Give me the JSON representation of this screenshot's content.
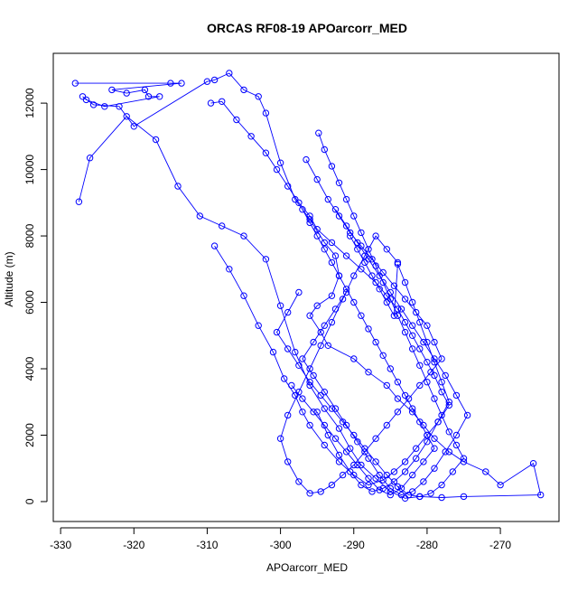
{
  "chart_data": {
    "type": "scatter",
    "title": "ORCAS RF08-19 APOarcorr_MED",
    "xlabel": "APOarcorr_MED",
    "ylabel": "Altitude (m)",
    "xlim": [
      -331,
      -262
    ],
    "ylim": [
      -600,
      13500
    ],
    "xticks": [
      -330,
      -320,
      -310,
      -300,
      -290,
      -280,
      -270
    ],
    "yticks": [
      0,
      2000,
      4000,
      6000,
      8000,
      10000,
      12000
    ],
    "connected": true,
    "grid": false,
    "colors": {
      "series": "#0000ff",
      "axis": "#000000",
      "background": "#ffffff"
    },
    "series": [
      {
        "x": [
          -328.0,
          -315.0,
          -313.5,
          -323.0,
          -321.0,
          -318.5,
          -318.0,
          -316.5,
          -324.0,
          -326.5,
          -327.0,
          -325.5,
          -322.0,
          -320.0,
          -310.0,
          -309.0,
          -307.0,
          -305.0,
          -303.0,
          -302.0,
          -300.0,
          -298.0,
          -296.0,
          -294.0,
          -292.5,
          -292.0,
          -293.0,
          -295.0,
          -296.0,
          -294.5,
          -293.5,
          -290.0,
          -288.0,
          -285.5,
          -284.0,
          -282.0,
          -280.5,
          -279.0,
          -277.0,
          -275.0,
          -272.0,
          -270.0,
          -265.5,
          -264.5,
          -275.0,
          -278.0,
          -281.0,
          -283.0,
          -285.0,
          -287.0,
          -289.0,
          -290.5,
          -292.0,
          -294.0,
          -296.0,
          -298.0,
          -300.0,
          -302.0,
          -305.0,
          -308.0,
          -311.0,
          -314.0,
          -317.0,
          -321.0,
          -326.0,
          -327.5
        ],
        "y": [
          12600,
          12600,
          12600,
          12400,
          12300,
          12400,
          12200,
          12200,
          11900,
          12100,
          12200,
          11950,
          11900,
          11300,
          12650,
          12700,
          12900,
          12400,
          12200,
          11700,
          10200,
          9100,
          8500,
          7800,
          7400,
          6800,
          6200,
          5900,
          5600,
          5100,
          4700,
          4300,
          3900,
          3500,
          3100,
          2700,
          2300,
          1900,
          1500,
          1200,
          900,
          500,
          1150,
          200,
          150,
          120,
          150,
          100,
          300,
          700,
          1100,
          1600,
          2200,
          2800,
          3500,
          4500,
          5900,
          7300,
          8000,
          8300,
          8600,
          9500,
          10900,
          11600,
          10350,
          9030
        ]
      },
      {
        "x": [
          -309.5,
          -308.0,
          -306.0,
          -304.0,
          -302.0,
          -300.5,
          -299.0,
          -297.5,
          -296.0,
          -295.0,
          -293.0,
          -291.0,
          -289.0,
          -287.0,
          -285.5,
          -284.0,
          -283.0,
          -282.0,
          -281.0,
          -280.0,
          -279.0,
          -278.0,
          -277.0,
          -278.5,
          -280.0,
          -281.5,
          -283.0,
          -284.5,
          -286.0,
          -288.0,
          -290.0,
          -292.0,
          -294.0,
          -296.0,
          -297.0,
          -298.0,
          -299.5,
          -301.0,
          -303.0,
          -305.0,
          -307.0,
          -309.0
        ],
        "y": [
          12000,
          12050,
          11500,
          11000,
          10500,
          10000,
          9500,
          9000,
          8600,
          8200,
          7800,
          7400,
          7000,
          6600,
          6200,
          5800,
          5400,
          5000,
          4600,
          4200,
          3800,
          3300,
          2900,
          2400,
          2000,
          1600,
          1200,
          900,
          650,
          500,
          800,
          1200,
          1700,
          2300,
          2700,
          3200,
          3700,
          4500,
          5300,
          6200,
          7000,
          7700
        ]
      },
      {
        "x": [
          -296.5,
          -295.0,
          -293.5,
          -292.0,
          -290.5,
          -289.0,
          -287.5,
          -286.0,
          -284.5,
          -283.0,
          -281.5,
          -280.0,
          -279.0,
          -278.0,
          -279.5,
          -281.0,
          -282.5,
          -284.0,
          -285.5,
          -287.0,
          -288.5,
          -290.0,
          -291.5,
          -293.0,
          -294.5,
          -296.0,
          -297.5,
          -299.0,
          -300.0,
          -299.0,
          -297.5,
          -296.0,
          -294.5,
          -293.0,
          -291.5,
          -290.0,
          -288.5,
          -287.0,
          -285.5,
          -284.0
        ],
        "y": [
          10300,
          9700,
          9100,
          8600,
          8100,
          7700,
          7300,
          6900,
          6500,
          6100,
          5700,
          5300,
          4800,
          4300,
          3900,
          3500,
          3100,
          2700,
          2300,
          1900,
          1500,
          1100,
          800,
          500,
          300,
          250,
          600,
          1200,
          1900,
          2600,
          3300,
          4000,
          4700,
          5400,
          6100,
          6800,
          7400,
          8000,
          7600,
          7200
        ]
      },
      {
        "x": [
          -294.8,
          -294.0,
          -293.0,
          -292.0,
          -291.0,
          -290.0,
          -289.0,
          -288.0,
          -287.0,
          -286.0,
          -285.0,
          -284.0,
          -283.0,
          -282.0,
          -281.0,
          -280.0,
          -279.0,
          -278.0,
          -277.0,
          -276.0,
          -275.0,
          -276.5,
          -278.0,
          -279.5,
          -281.0,
          -282.5,
          -284.0,
          -285.5,
          -287.0,
          -288.5,
          -290.0,
          -291.5,
          -293.0,
          -294.5,
          -296.0,
          -297.5,
          -299.0,
          -300.5,
          -299.0,
          -297.5
        ],
        "y": [
          11100,
          10600,
          10100,
          9600,
          9100,
          8600,
          8100,
          7600,
          7100,
          6600,
          6100,
          5600,
          5100,
          4600,
          4100,
          3600,
          3100,
          2600,
          2100,
          1700,
          1300,
          900,
          500,
          250,
          150,
          200,
          450,
          800,
          1200,
          1600,
          2000,
          2400,
          2800,
          3200,
          3600,
          4100,
          4600,
          5100,
          5700,
          6300
        ]
      },
      {
        "x": [
          -297.0,
          -296.0,
          -295.0,
          -294.0,
          -293.0,
          -292.0,
          -291.0,
          -290.0,
          -289.0,
          -288.0,
          -287.0,
          -286.0,
          -285.0,
          -284.0,
          -283.0,
          -282.0,
          -281.0,
          -280.0,
          -279.0,
          -280.5,
          -282.0,
          -283.5,
          -285.0,
          -286.5,
          -288.0,
          -289.5,
          -291.0,
          -292.5,
          -294.0,
          -295.5,
          -297.0,
          -298.5
        ],
        "y": [
          8800,
          8400,
          8000,
          7600,
          7200,
          6800,
          6400,
          6000,
          5600,
          5200,
          4800,
          4400,
          4000,
          3600,
          3200,
          2800,
          2400,
          2000,
          1600,
          1200,
          800,
          400,
          200,
          350,
          700,
          1100,
          1500,
          1900,
          2300,
          2700,
          3100,
          3500
        ]
      },
      {
        "x": [
          -292.5,
          -291.0,
          -289.5,
          -288.0,
          -286.5,
          -285.0,
          -283.5,
          -282.0,
          -280.5,
          -279.0,
          -277.5,
          -276.0,
          -274.5,
          -276.0,
          -277.5,
          -279.0,
          -280.5,
          -282.0,
          -283.5,
          -285.0,
          -286.5,
          -288.0,
          -289.5,
          -291.0,
          -292.5,
          -294.0,
          -295.5,
          -297.0,
          -295.5,
          -294.0,
          -292.5,
          -291.0
        ],
        "y": [
          8800,
          8300,
          7800,
          7300,
          6800,
          6300,
          5800,
          5300,
          4800,
          4300,
          3800,
          3200,
          2600,
          2000,
          1500,
          1000,
          600,
          300,
          200,
          400,
          800,
          1300,
          1800,
          2300,
          2800,
          3300,
          3800,
          4300,
          4800,
          5300,
          5800,
          6300
        ]
      },
      {
        "x": [
          -290.5,
          -289.5,
          -288.5,
          -287.5,
          -286.5,
          -285.5,
          -284.5,
          -284.0,
          -283.0,
          -282.0,
          -281.0,
          -280.0,
          -279.0,
          -278.0,
          -277.0,
          -278.5,
          -280.0,
          -281.5,
          -283.0,
          -284.5,
          -286.0,
          -287.5,
          -289.0,
          -290.5,
          -292.0,
          -293.5,
          -295.0
        ],
        "y": [
          8000,
          7600,
          7200,
          6800,
          6400,
          6000,
          5600,
          7150,
          6600,
          6000,
          5400,
          4800,
          4200,
          3600,
          3000,
          2400,
          1800,
          1300,
          900,
          600,
          400,
          300,
          500,
          900,
          1400,
          2000,
          2700
        ]
      }
    ]
  }
}
